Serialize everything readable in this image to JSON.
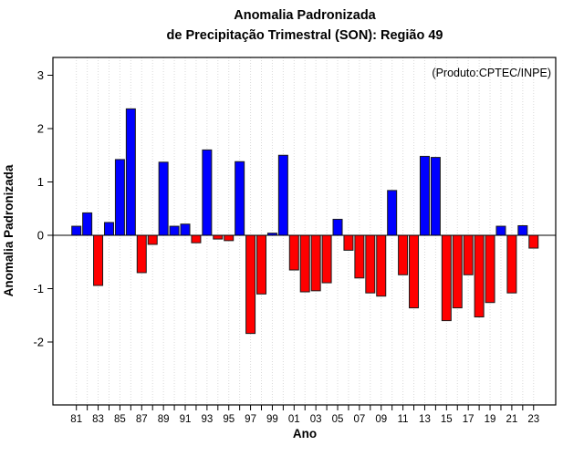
{
  "chart_data": {
    "type": "bar",
    "title": "Anomalia Padronizada",
    "subtitle": "de Precipitação Trimestral (SON): Região 49",
    "xlabel": "Ano",
    "ylabel": "Anomalia Padronizada",
    "annotation": "(Produto:CPTEC/INPE)",
    "annotation_color": "#7f7f7f",
    "legend": "none",
    "grid": "vertical-dotted",
    "ylim": [
      -3.2,
      3.3
    ],
    "y_ticks": [
      -2,
      -1,
      0,
      1,
      2,
      3
    ],
    "x_tick_labels": [
      "81",
      "83",
      "85",
      "87",
      "89",
      "91",
      "93",
      "95",
      "97",
      "99",
      "01",
      "03",
      "05",
      "07",
      "09",
      "11",
      "13",
      "15",
      "17",
      "19",
      "21",
      "23"
    ],
    "years": [
      1981,
      1982,
      1983,
      1984,
      1985,
      1986,
      1987,
      1988,
      1989,
      1990,
      1991,
      1992,
      1993,
      1994,
      1995,
      1996,
      1997,
      1998,
      1999,
      2000,
      2001,
      2002,
      2003,
      2004,
      2005,
      2006,
      2007,
      2008,
      2009,
      2010,
      2011,
      2012,
      2013,
      2014,
      2015,
      2016,
      2017,
      2018,
      2019,
      2020,
      2021,
      2022,
      2023
    ],
    "values": [
      0.17,
      0.42,
      -0.94,
      0.24,
      1.42,
      2.37,
      -0.7,
      -0.17,
      1.37,
      0.17,
      0.21,
      -0.14,
      1.6,
      -0.07,
      -0.1,
      1.38,
      -1.84,
      -1.1,
      0.04,
      1.5,
      -0.65,
      -1.06,
      -1.04,
      -0.89,
      0.3,
      -0.28,
      -0.8,
      -1.08,
      -1.14,
      0.84,
      -0.74,
      -1.36,
      1.48,
      1.46,
      -1.6,
      -1.36,
      -0.74,
      -1.53,
      -1.26,
      0.17,
      -1.08,
      0.18,
      -0.24
    ],
    "positive_color": "#0000ff",
    "negative_color": "#ff0000",
    "bar_border_color": "#1a1a1a",
    "gridline_color": "#d9d9d9"
  }
}
